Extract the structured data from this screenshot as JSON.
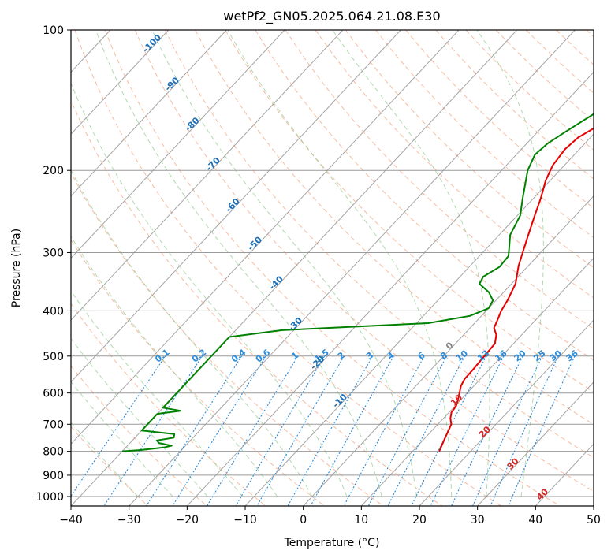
{
  "chart_data": {
    "type": "line",
    "title": "wetPf2_GN05.2025.064.21.08.E30",
    "xlabel": "Temperature (°C)",
    "ylabel": "Pressure (hPa)",
    "xlim": [
      -40,
      50
    ],
    "ylim": [
      1050,
      100
    ],
    "yscale": "log",
    "grid": true,
    "x_ticks": [
      "−40",
      "−30",
      "−20",
      "−10",
      "0",
      "10",
      "20",
      "30",
      "40",
      "50"
    ],
    "y_ticks": [
      "100",
      "200",
      "300",
      "400",
      "500",
      "600",
      "700",
      "800",
      "900",
      "1000"
    ],
    "isotherm_labels": [
      "-100",
      "-90",
      "-80",
      "-70",
      "-60",
      "-50",
      "-40",
      "-30",
      "-20",
      "-10",
      "0",
      "10",
      "20",
      "30",
      "40"
    ],
    "mixing_ratio_labels": [
      "0.1",
      "0.2",
      "0.4",
      "0.6",
      "1",
      "1.5",
      "2",
      "3",
      "4",
      "6",
      "8",
      "10",
      "13",
      "16",
      "20",
      "25",
      "30",
      "36"
    ],
    "series": [
      {
        "color": "#e60000",
        "points": [
          {
            "p": 800,
            "t": 14.6
          },
          {
            "p": 760,
            "t": 13.7
          },
          {
            "p": 700,
            "t": 12.3
          },
          {
            "p": 680,
            "t": 11.2
          },
          {
            "p": 660,
            "t": 10.4
          },
          {
            "p": 640,
            "t": 10.2
          },
          {
            "p": 620,
            "t": 9.5
          },
          {
            "p": 580,
            "t": 7.8
          },
          {
            "p": 560,
            "t": 7.3
          },
          {
            "p": 530,
            "t": 7.2
          },
          {
            "p": 500,
            "t": 7.0
          },
          {
            "p": 470,
            "t": 6.8
          },
          {
            "p": 450,
            "t": 5.6
          },
          {
            "p": 435,
            "t": 4.1
          },
          {
            "p": 420,
            "t": 3.5
          },
          {
            "p": 400,
            "t": 2.6
          },
          {
            "p": 380,
            "t": 2.0
          },
          {
            "p": 350,
            "t": 0.7
          },
          {
            "p": 320,
            "t": -1.7
          },
          {
            "p": 300,
            "t": -3.1
          },
          {
            "p": 280,
            "t": -4.6
          },
          {
            "p": 250,
            "t": -7.0
          },
          {
            "p": 230,
            "t": -8.7
          },
          {
            "p": 210,
            "t": -10.8
          },
          {
            "p": 195,
            "t": -12.0
          },
          {
            "p": 180,
            "t": -12.5
          },
          {
            "p": 170,
            "t": -12.1
          },
          {
            "p": 160,
            "t": -10.5
          },
          {
            "p": 150,
            "t": -8.0
          },
          {
            "p": 140,
            "t": -4.0
          },
          {
            "p": 130,
            "t": 0.5
          },
          {
            "p": 120,
            "t": 6.0
          },
          {
            "p": 113,
            "t": 8.5
          },
          {
            "p": 107,
            "t": 9.8
          },
          {
            "p": 100,
            "t": 10.8
          }
        ]
      },
      {
        "color": "#008000",
        "points": [
          {
            "p": 800,
            "t": -40.0
          },
          {
            "p": 795,
            "t": -37.0
          },
          {
            "p": 785,
            "t": -33.5
          },
          {
            "p": 778,
            "t": -32.4
          },
          {
            "p": 768,
            "t": -35.0
          },
          {
            "p": 758,
            "t": -35.8
          },
          {
            "p": 748,
            "t": -33.3
          },
          {
            "p": 735,
            "t": -33.8
          },
          {
            "p": 722,
            "t": -40.0
          },
          {
            "p": 665,
            "t": -40.0
          },
          {
            "p": 655,
            "t": -36.5
          },
          {
            "p": 645,
            "t": -40.0
          },
          {
            "p": 455,
            "t": -40.0
          },
          {
            "p": 440,
            "t": -32.0
          },
          {
            "p": 425,
            "t": -8.0
          },
          {
            "p": 410,
            "t": -2.0
          },
          {
            "p": 395,
            "t": 0.0
          },
          {
            "p": 380,
            "t": -0.5
          },
          {
            "p": 365,
            "t": -2.5
          },
          {
            "p": 350,
            "t": -5.5
          },
          {
            "p": 338,
            "t": -6.0
          },
          {
            "p": 322,
            "t": -4.8
          },
          {
            "p": 305,
            "t": -5.0
          },
          {
            "p": 290,
            "t": -6.5
          },
          {
            "p": 275,
            "t": -8.1
          },
          {
            "p": 250,
            "t": -9.5
          },
          {
            "p": 230,
            "t": -11.8
          },
          {
            "p": 200,
            "t": -15.5
          },
          {
            "p": 185,
            "t": -16.8
          },
          {
            "p": 175,
            "t": -16.4
          },
          {
            "p": 165,
            "t": -15.2
          },
          {
            "p": 150,
            "t": -13.0
          },
          {
            "p": 135,
            "t": -9.5
          },
          {
            "p": 120,
            "t": -4.5
          },
          {
            "p": 112,
            "t": -2.0
          },
          {
            "p": 105,
            "t": 0.0
          },
          {
            "p": 100,
            "t": 1.2
          }
        ]
      }
    ]
  }
}
